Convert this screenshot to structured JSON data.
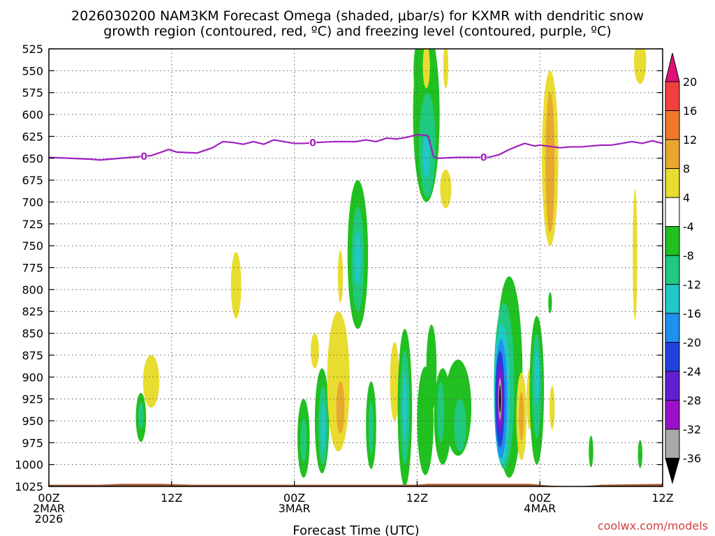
{
  "chart_data": {
    "type": "heatmap",
    "title_line1": "2026030200 NAM3KM Forecast Omega (shaded, μbar/s) for KXMR with dendritic snow",
    "title_line2": "growth region (contoured, red, ºC) and freezing level (contoured, purple, ºC)",
    "xlabel": "Forecast Time (UTC)",
    "credit": "coolwx.com/models",
    "x_range_hours": [
      0,
      60
    ],
    "y_axis_scale": "pressure (linear, inverted)",
    "y_range_mb": [
      525,
      1025
    ],
    "y_ticks": [
      "525",
      "550",
      "575",
      "600",
      "625",
      "650",
      "675",
      "700",
      "725",
      "750",
      "775",
      "800",
      "825",
      "850",
      "875",
      "900",
      "925",
      "950",
      "975",
      "1000",
      "1025"
    ],
    "x_ticks": [
      {
        "hour": 0,
        "lines": [
          "00Z",
          "2MAR",
          "2026"
        ]
      },
      {
        "hour": 12,
        "lines": [
          "12Z"
        ]
      },
      {
        "hour": 24,
        "lines": [
          "00Z",
          "3MAR"
        ]
      },
      {
        "hour": 36,
        "lines": [
          "12Z"
        ]
      },
      {
        "hour": 48,
        "lines": [
          "00Z",
          "4MAR"
        ]
      },
      {
        "hour": 60,
        "lines": [
          "12Z"
        ]
      }
    ],
    "grid": true,
    "colorbar": {
      "position": "right",
      "bins": [
        {
          "color": "#e0107a"
        },
        {
          "color": "#f04040"
        },
        {
          "color": "#f07828"
        },
        {
          "color": "#e8a830"
        },
        {
          "color": "#e8dc30"
        },
        {
          "color": "#ffffff"
        },
        {
          "color": "#20c020"
        },
        {
          "color": "#20c880"
        },
        {
          "color": "#20c8c8"
        },
        {
          "color": "#2090f0"
        },
        {
          "color": "#2040e0"
        },
        {
          "color": "#6020d0"
        },
        {
          "color": "#9a10c8"
        },
        {
          "color": "#a8a8a8"
        },
        {
          "color": "#000000"
        }
      ],
      "labels": [
        "20",
        "16",
        "12",
        "8",
        "4",
        "-4",
        "-8",
        "-12",
        "-16",
        "-20",
        "-24",
        "-28",
        "-32",
        "-36"
      ]
    },
    "freezing_level": {
      "color": "#a020c0",
      "label": "0",
      "label_hours": [
        9.3,
        25.8,
        42.5
      ],
      "points": [
        [
          0,
          649
        ],
        [
          2,
          650
        ],
        [
          4,
          651
        ],
        [
          5,
          652
        ],
        [
          7,
          650
        ],
        [
          9,
          648
        ],
        [
          10,
          647
        ],
        [
          11,
          643
        ],
        [
          11.7,
          640
        ],
        [
          12.5,
          643
        ],
        [
          14.5,
          644
        ],
        [
          16,
          638
        ],
        [
          17,
          631
        ],
        [
          18,
          632
        ],
        [
          19,
          634
        ],
        [
          20,
          631
        ],
        [
          21,
          634
        ],
        [
          22,
          629
        ],
        [
          23,
          631
        ],
        [
          24,
          633
        ],
        [
          25,
          633
        ],
        [
          26,
          632
        ],
        [
          28,
          631
        ],
        [
          30,
          631
        ],
        [
          31,
          629
        ],
        [
          32,
          631
        ],
        [
          33,
          627
        ],
        [
          34,
          628
        ],
        [
          35,
          626
        ],
        [
          36,
          623
        ],
        [
          37,
          624
        ],
        [
          37.2,
          630
        ],
        [
          37.6,
          648
        ],
        [
          38,
          650
        ],
        [
          40,
          649
        ],
        [
          42,
          649
        ],
        [
          43,
          649
        ],
        [
          44,
          646
        ],
        [
          45,
          640
        ],
        [
          46.5,
          633
        ],
        [
          47.5,
          636
        ],
        [
          48,
          635
        ],
        [
          50,
          638
        ],
        [
          51,
          637
        ],
        [
          52,
          637
        ],
        [
          54,
          635
        ],
        [
          55,
          635
        ],
        [
          56,
          633
        ],
        [
          57,
          631
        ],
        [
          58,
          633
        ],
        [
          59,
          630
        ],
        [
          60,
          633
        ],
        [
          60.5,
          636
        ]
      ]
    },
    "shaded_features": [
      {
        "type": "ellipse",
        "x_hr": 10.0,
        "p_mb": 905,
        "rx_hr": 0.8,
        "ry_mb": 30,
        "level": 4
      },
      {
        "type": "ellipse",
        "x_hr": 9.0,
        "p_mb": 946,
        "rx_hr": 0.5,
        "ry_mb": 28,
        "level": -4
      },
      {
        "type": "ellipse",
        "x_hr": 9.0,
        "p_mb": 944,
        "rx_hr": 0.25,
        "ry_mb": 15,
        "level": -8
      },
      {
        "type": "ellipse",
        "x_hr": 18.3,
        "p_mb": 795,
        "rx_hr": 0.5,
        "ry_mb": 38,
        "level": 4
      },
      {
        "type": "ellipse",
        "x_hr": 26.0,
        "p_mb": 870,
        "rx_hr": 0.4,
        "ry_mb": 20,
        "level": 4
      },
      {
        "type": "ellipse",
        "x_hr": 24.9,
        "p_mb": 970,
        "rx_hr": 0.6,
        "ry_mb": 45,
        "level": -4
      },
      {
        "type": "ellipse",
        "x_hr": 24.9,
        "p_mb": 972,
        "rx_hr": 0.3,
        "ry_mb": 25,
        "level": -8
      },
      {
        "type": "ellipse",
        "x_hr": 26.7,
        "p_mb": 950,
        "rx_hr": 0.7,
        "ry_mb": 60,
        "level": -4
      },
      {
        "type": "ellipse",
        "x_hr": 26.8,
        "p_mb": 955,
        "rx_hr": 0.45,
        "ry_mb": 45,
        "level": -8
      },
      {
        "type": "ellipse",
        "x_hr": 26.8,
        "p_mb": 958,
        "rx_hr": 0.22,
        "ry_mb": 28,
        "level": -12
      },
      {
        "type": "ellipse",
        "x_hr": 28.3,
        "p_mb": 905,
        "rx_hr": 1.1,
        "ry_mb": 80,
        "level": 4
      },
      {
        "type": "ellipse",
        "x_hr": 28.5,
        "p_mb": 935,
        "rx_hr": 0.4,
        "ry_mb": 30,
        "level": 8
      },
      {
        "type": "ellipse",
        "x_hr": 28.5,
        "p_mb": 785,
        "rx_hr": 0.25,
        "ry_mb": 30,
        "level": 4
      },
      {
        "type": "ellipse",
        "x_hr": 30.2,
        "p_mb": 760,
        "rx_hr": 1.0,
        "ry_mb": 85,
        "level": -4
      },
      {
        "type": "ellipse",
        "x_hr": 30.2,
        "p_mb": 765,
        "rx_hr": 0.6,
        "ry_mb": 60,
        "level": -8
      },
      {
        "type": "ellipse",
        "x_hr": 30.2,
        "p_mb": 765,
        "rx_hr": 0.3,
        "ry_mb": 30,
        "level": -12
      },
      {
        "type": "ellipse",
        "x_hr": 31.5,
        "p_mb": 955,
        "rx_hr": 0.5,
        "ry_mb": 50,
        "level": -4
      },
      {
        "type": "ellipse",
        "x_hr": 31.5,
        "p_mb": 958,
        "rx_hr": 0.25,
        "ry_mb": 30,
        "level": -8
      },
      {
        "type": "ellipse",
        "x_hr": 33.8,
        "p_mb": 905,
        "rx_hr": 0.45,
        "ry_mb": 45,
        "level": 4
      },
      {
        "type": "ellipse",
        "x_hr": 34.8,
        "p_mb": 935,
        "rx_hr": 0.7,
        "ry_mb": 90,
        "level": -4
      },
      {
        "type": "ellipse",
        "x_hr": 34.8,
        "p_mb": 935,
        "rx_hr": 0.45,
        "ry_mb": 65,
        "level": -8
      },
      {
        "type": "ellipse",
        "x_hr": 34.8,
        "p_mb": 935,
        "rx_hr": 0.22,
        "ry_mb": 40,
        "level": -12
      },
      {
        "type": "ellipse",
        "x_hr": 36.9,
        "p_mb": 600,
        "rx_hr": 1.3,
        "ry_mb": 100,
        "level": -4
      },
      {
        "type": "ellipse",
        "x_hr": 36.3,
        "p_mb": 550,
        "rx_hr": 0.65,
        "ry_mb": 40,
        "level": -4
      },
      {
        "type": "ellipse",
        "x_hr": 37.0,
        "p_mb": 635,
        "rx_hr": 0.8,
        "ry_mb": 60,
        "level": -8
      },
      {
        "type": "ellipse",
        "x_hr": 36.9,
        "p_mb": 648,
        "rx_hr": 0.35,
        "ry_mb": 25,
        "level": -12
      },
      {
        "type": "ellipse",
        "x_hr": 36.9,
        "p_mb": 545,
        "rx_hr": 0.35,
        "ry_mb": 25,
        "level": 4
      },
      {
        "type": "ellipse",
        "x_hr": 38.8,
        "p_mb": 545,
        "rx_hr": 0.25,
        "ry_mb": 25,
        "level": 4
      },
      {
        "type": "ellipse",
        "x_hr": 38.8,
        "p_mb": 685,
        "rx_hr": 0.55,
        "ry_mb": 22,
        "level": 4
      },
      {
        "type": "ellipse",
        "x_hr": 36.8,
        "p_mb": 950,
        "rx_hr": 0.8,
        "ry_mb": 62,
        "level": -4
      },
      {
        "type": "ellipse",
        "x_hr": 37.4,
        "p_mb": 890,
        "rx_hr": 0.5,
        "ry_mb": 50,
        "level": -4
      },
      {
        "type": "ellipse",
        "x_hr": 38.5,
        "p_mb": 945,
        "rx_hr": 0.85,
        "ry_mb": 55,
        "level": -4
      },
      {
        "type": "ellipse",
        "x_hr": 38.3,
        "p_mb": 940,
        "rx_hr": 0.35,
        "ry_mb": 35,
        "level": -8
      },
      {
        "type": "ellipse",
        "x_hr": 40.0,
        "p_mb": 935,
        "rx_hr": 1.3,
        "ry_mb": 55,
        "level": -4
      },
      {
        "type": "ellipse",
        "x_hr": 40.2,
        "p_mb": 955,
        "rx_hr": 0.6,
        "ry_mb": 30,
        "level": -8
      },
      {
        "type": "ellipse",
        "x_hr": 45.0,
        "p_mb": 900,
        "rx_hr": 1.3,
        "ry_mb": 115,
        "level": -4
      },
      {
        "type": "ellipse",
        "x_hr": 44.5,
        "p_mb": 910,
        "rx_hr": 1.0,
        "ry_mb": 95,
        "level": -8
      },
      {
        "type": "ellipse",
        "x_hr": 44.3,
        "p_mb": 920,
        "rx_hr": 0.78,
        "ry_mb": 80,
        "level": -12
      },
      {
        "type": "ellipse",
        "x_hr": 44.2,
        "p_mb": 925,
        "rx_hr": 0.6,
        "ry_mb": 68,
        "level": -16
      },
      {
        "type": "ellipse",
        "x_hr": 44.1,
        "p_mb": 925,
        "rx_hr": 0.45,
        "ry_mb": 55,
        "level": -20
      },
      {
        "type": "ellipse",
        "x_hr": 44.1,
        "p_mb": 925,
        "rx_hr": 0.35,
        "ry_mb": 42,
        "level": -24
      },
      {
        "type": "ellipse",
        "x_hr": 44.1,
        "p_mb": 925,
        "rx_hr": 0.24,
        "ry_mb": 33,
        "level": -28
      },
      {
        "type": "ellipse",
        "x_hr": 44.1,
        "p_mb": 925,
        "rx_hr": 0.16,
        "ry_mb": 24,
        "level": -32
      },
      {
        "type": "ellipse",
        "x_hr": 44.1,
        "p_mb": 925,
        "rx_hr": 0.08,
        "ry_mb": 16,
        "level": -36
      },
      {
        "type": "ellipse",
        "x_hr": 46.2,
        "p_mb": 945,
        "rx_hr": 0.5,
        "ry_mb": 50,
        "level": 4
      },
      {
        "type": "ellipse",
        "x_hr": 46.2,
        "p_mb": 945,
        "rx_hr": 0.25,
        "ry_mb": 28,
        "level": 8
      },
      {
        "type": "ellipse",
        "x_hr": 47.0,
        "p_mb": 925,
        "rx_hr": 0.3,
        "ry_mb": 35,
        "level": 4
      },
      {
        "type": "ellipse",
        "x_hr": 47.7,
        "p_mb": 915,
        "rx_hr": 0.7,
        "ry_mb": 85,
        "level": -4
      },
      {
        "type": "ellipse",
        "x_hr": 47.7,
        "p_mb": 910,
        "rx_hr": 0.45,
        "ry_mb": 60,
        "level": -8
      },
      {
        "type": "ellipse",
        "x_hr": 47.7,
        "p_mb": 900,
        "rx_hr": 0.22,
        "ry_mb": 30,
        "level": -12
      },
      {
        "type": "ellipse",
        "x_hr": 49.0,
        "p_mb": 650,
        "rx_hr": 0.8,
        "ry_mb": 100,
        "level": 4
      },
      {
        "type": "ellipse",
        "x_hr": 49.0,
        "p_mb": 655,
        "rx_hr": 0.45,
        "ry_mb": 80,
        "level": 8
      },
      {
        "type": "ellipse",
        "x_hr": 49.0,
        "p_mb": 815,
        "rx_hr": 0.18,
        "ry_mb": 12,
        "level": -4
      },
      {
        "type": "ellipse",
        "x_hr": 49.2,
        "p_mb": 935,
        "rx_hr": 0.25,
        "ry_mb": 25,
        "level": 4
      },
      {
        "type": "ellipse",
        "x_hr": 53.0,
        "p_mb": 985,
        "rx_hr": 0.22,
        "ry_mb": 18,
        "level": -4
      },
      {
        "type": "ellipse",
        "x_hr": 57.3,
        "p_mb": 760,
        "rx_hr": 0.22,
        "ry_mb": 75,
        "level": 4
      },
      {
        "type": "ellipse",
        "x_hr": 57.8,
        "p_mb": 540,
        "rx_hr": 0.6,
        "ry_mb": 25,
        "level": 4
      },
      {
        "type": "ellipse",
        "x_hr": 57.8,
        "p_mb": 988,
        "rx_hr": 0.22,
        "ry_mb": 16,
        "level": -4
      }
    ],
    "terrain": {
      "color": "#a55a32",
      "top_mb": [
        [
          0,
          1023
        ],
        [
          5,
          1023
        ],
        [
          7,
          1022
        ],
        [
          11,
          1022
        ],
        [
          14,
          1023
        ],
        [
          34,
          1023
        ],
        [
          36,
          1023
        ],
        [
          37,
          1022
        ],
        [
          47,
          1022
        ],
        [
          49,
          1024
        ],
        [
          51,
          1025
        ],
        [
          53,
          1024
        ],
        [
          54,
          1023
        ],
        [
          60,
          1022
        ]
      ]
    }
  }
}
